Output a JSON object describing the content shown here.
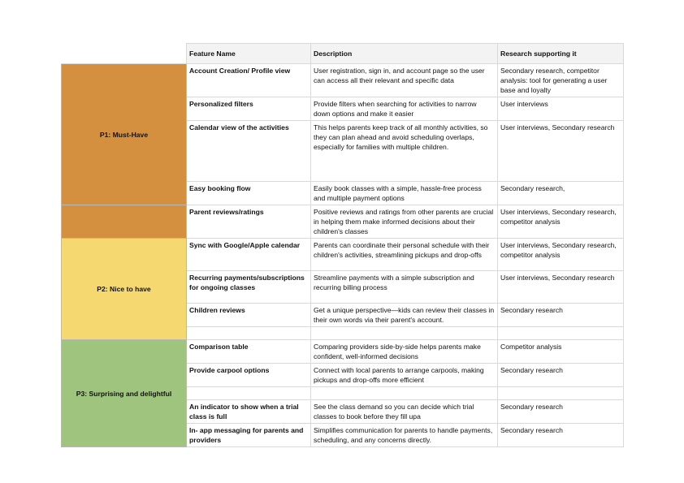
{
  "headers": {
    "feature": "Feature Name",
    "description": "Description",
    "research": "Research supporting it"
  },
  "groups": {
    "p1": {
      "label": "P1: Must-Have",
      "color": "#d4903f"
    },
    "p2": {
      "label": "P2: Nice to have",
      "color": "#f5d86f"
    },
    "p3": {
      "label": "P3: Surprising and delightful",
      "color": "#9fc47d"
    }
  },
  "rows": [
    {
      "feature": "Account Creation/ Profile view",
      "description": "User registration, sign in, and account page so the user can access all their relevant and specific data",
      "research": "Secondary research, competitor analysis: tool for generating a user base and loyalty"
    },
    {
      "feature": "Personalized filters",
      "description": "Provide filters when searching for activities to narrow down options and make it easier",
      "research": "User interviews"
    },
    {
      "feature": "Calendar view of the activities",
      "description": "This helps parents keep track of all monthly activities, so they can plan ahead and avoid scheduling overlaps, especially for families with multiple children.",
      "research": "User interviews, Secondary research"
    },
    {
      "feature": "Easy booking flow",
      "description": "Easily book classes with a simple, hassle-free process and multiple payment options",
      "research": "Secondary research,"
    },
    {
      "feature": "Parent reviews/ratings",
      "description": "Positive reviews and ratings from other parents are crucial in helping them make informed decisions about their children's classes",
      "research": "User interviews, Secondary research, competitor analysis"
    },
    {
      "feature": "Sync with Google/Apple calendar",
      "description": "Parents can coordinate their personal schedule with their children's activities, streamlining pickups and drop-offs",
      "research": "User interviews, Secondary research, competitor analysis"
    },
    {
      "feature": "Recurring payments/subscriptions for ongoing classes",
      "description": "Streamline payments with a simple subscription and recurring billing process",
      "research": "User interviews, Secondary research"
    },
    {
      "feature": "Children reviews",
      "description": "Get a unique perspective—kids can review their classes in their own words via their parent's account.",
      "research": "Secondary research"
    },
    {
      "feature": "Comparison table",
      "description": "Comparing providers side-by-side helps parents make confident, well-informed decisions",
      "research": "Competitor analysis"
    },
    {
      "feature": "Provide carpool options",
      "description": "Connect with local parents to arrange carpools, making pickups and drop-offs more efficient",
      "research": "Secondary research"
    },
    {
      "feature": "An indicator to show when a trial class is full",
      "description": "See the class demand so you can decide which trial classes to book before they fill upa",
      "research": "Secondary research"
    },
    {
      "feature": "In- app messaging for parents and providers",
      "description": "Simplifies communication for parents to handle payments, scheduling, and any concerns directly.",
      "research": "Secondary research"
    }
  ]
}
